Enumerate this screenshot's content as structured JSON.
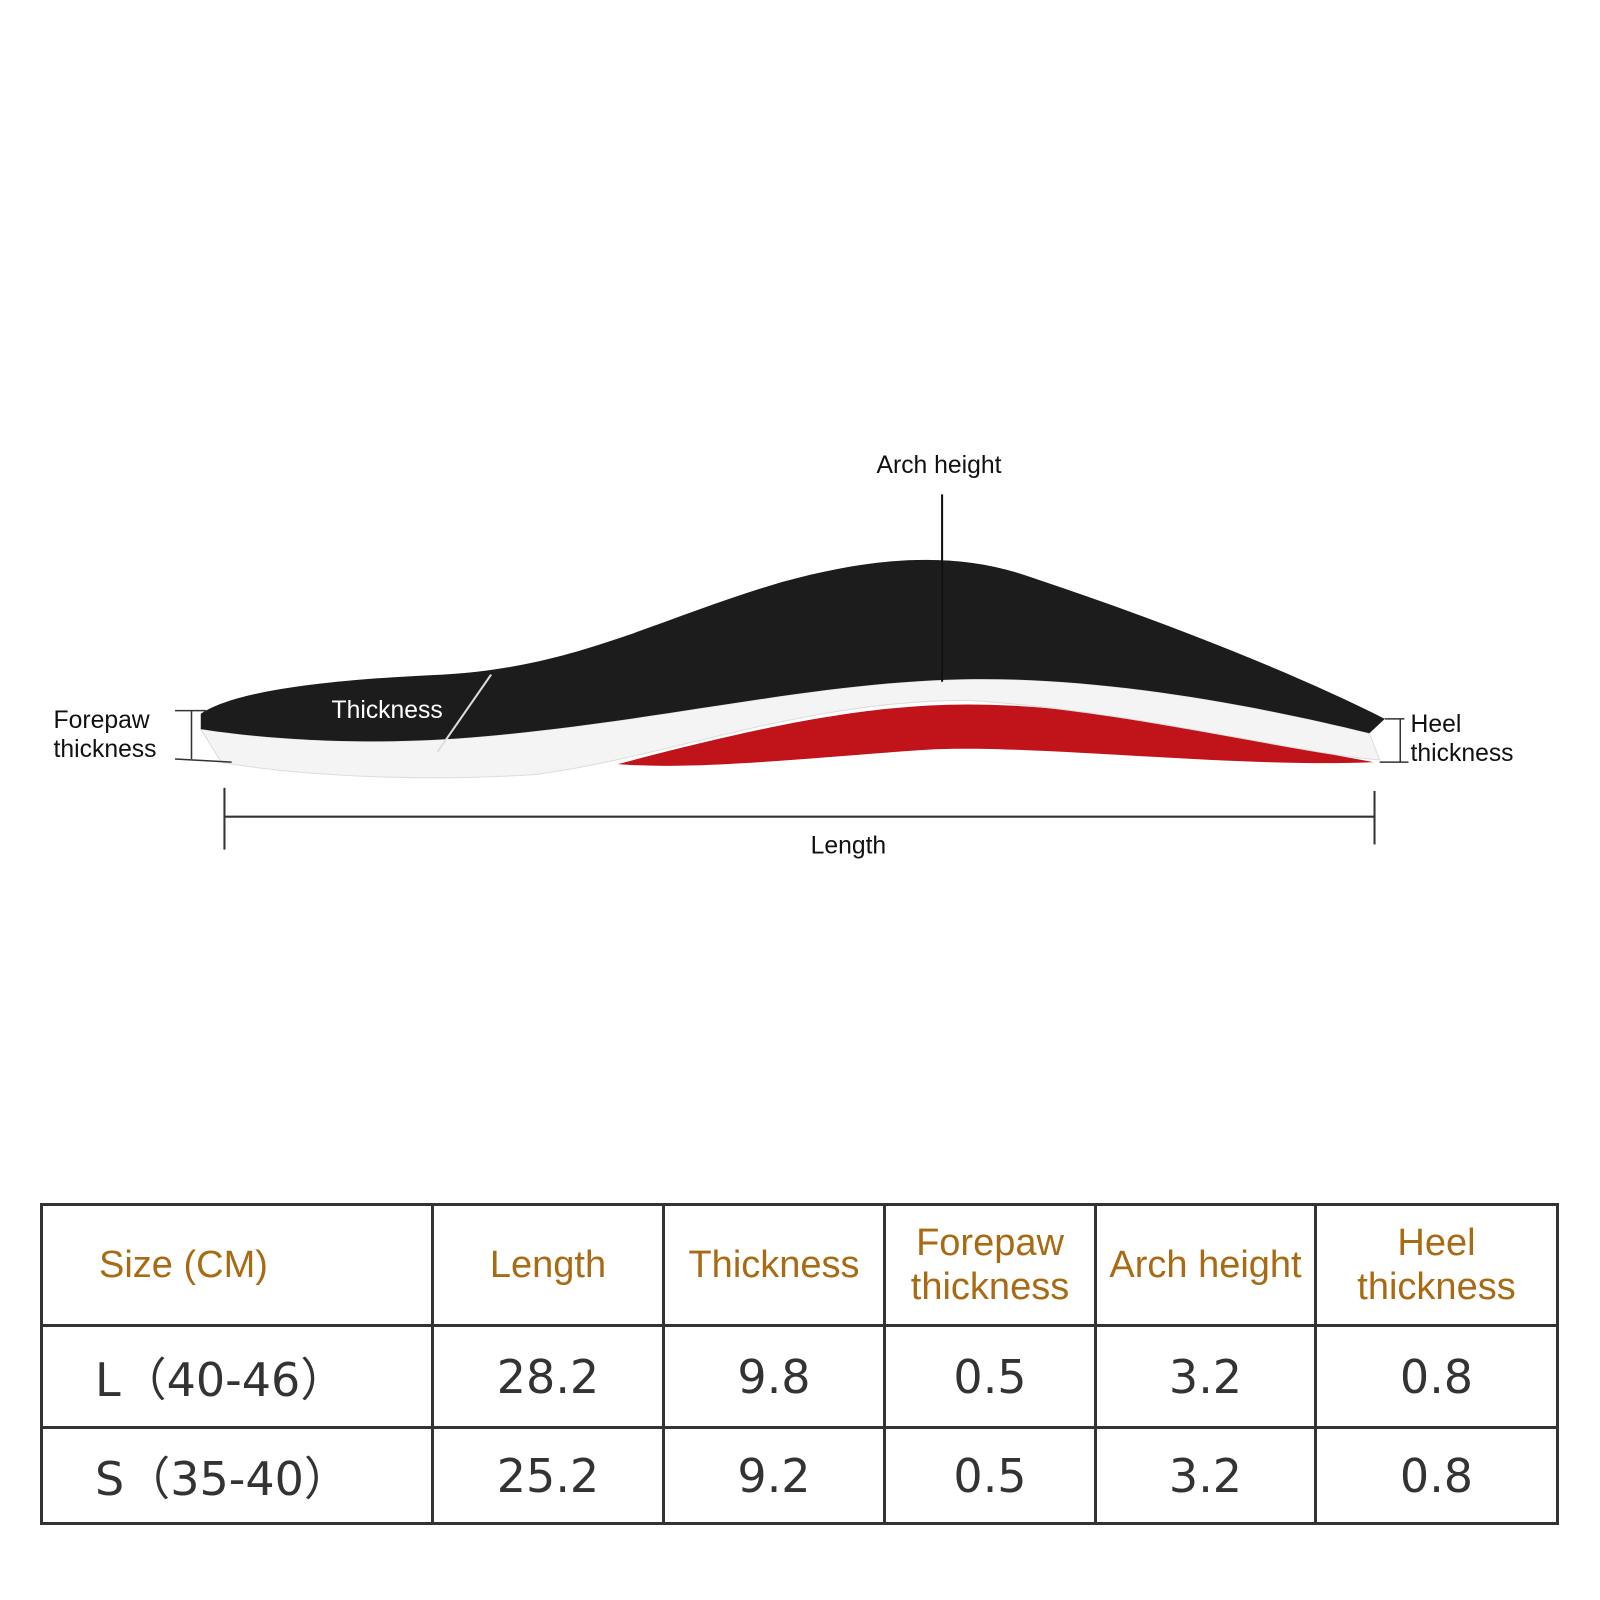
{
  "diagram": {
    "labels": {
      "arch_height": "Arch height",
      "thickness": "Thickness",
      "forepaw_thickness": [
        "Forepaw",
        "thickness"
      ],
      "heel_thickness": [
        "Heel",
        "thickness"
      ],
      "length": "Length"
    }
  },
  "table": {
    "header": [
      "Size (CM)",
      "Length",
      "Thickness",
      "Forepaw thickness",
      "Arch height",
      "Heel thickness"
    ],
    "rows": [
      [
        "L（40-46）",
        28.2,
        9.8,
        0.5,
        3.2,
        0.8
      ],
      [
        "S（35-40）",
        25.2,
        9.2,
        0.5,
        3.2,
        0.8
      ]
    ]
  }
}
